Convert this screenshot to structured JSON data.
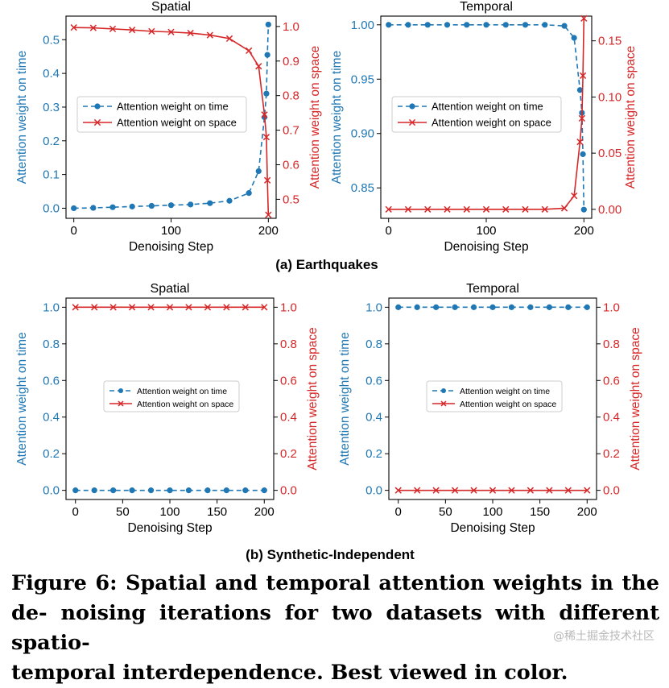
{
  "colors": {
    "time": "#1f77b4",
    "space": "#d62728",
    "axis": "#000000"
  },
  "captions": {
    "panel_a": "(a) Earthquakes",
    "panel_b": "(b) Synthetic-Independent",
    "figure_line1": "Figure 6: Spatial and temporal attention weights in the de-",
    "figure_line2": "noising iterations for two datasets with different spatio-",
    "figure_line3": "temporal interdependence. Best viewed in color."
  },
  "watermark": "@稀土掘金技术社区",
  "chart_data": [
    {
      "type": "line",
      "title": "Spatial",
      "xlabel": "Denoising Step",
      "ylabel_left": "Attention weight on time",
      "ylabel_right": "Attention weight on space",
      "xlim": [
        -8,
        208
      ],
      "ylim_left": [
        -0.03,
        0.57
      ],
      "ylim_right": [
        0.445,
        1.03
      ],
      "xticks": [
        0,
        100,
        200
      ],
      "yticks_left": [
        0.0,
        0.1,
        0.2,
        0.3,
        0.4,
        0.5
      ],
      "yticks_right": [
        0.5,
        0.6,
        0.7,
        0.8,
        0.9,
        1.0
      ],
      "legend": "center-left",
      "legend_size": "large",
      "series": [
        {
          "name": "Attention weight on time",
          "axis": "left",
          "style": "dashed-dot",
          "x": [
            0,
            20,
            40,
            60,
            80,
            100,
            120,
            140,
            160,
            180,
            190,
            196,
            198,
            199,
            200
          ],
          "y": [
            0.0,
            0.001,
            0.003,
            0.005,
            0.007,
            0.009,
            0.011,
            0.015,
            0.022,
            0.045,
            0.11,
            0.27,
            0.34,
            0.455,
            0.545
          ]
        },
        {
          "name": "Attention weight on space",
          "axis": "right",
          "style": "solid-x",
          "x": [
            0,
            20,
            40,
            60,
            80,
            100,
            120,
            140,
            160,
            180,
            190,
            196,
            198,
            199,
            200
          ],
          "y": [
            0.997,
            0.996,
            0.993,
            0.99,
            0.986,
            0.984,
            0.981,
            0.975,
            0.965,
            0.93,
            0.885,
            0.745,
            0.68,
            0.555,
            0.455
          ]
        }
      ]
    },
    {
      "type": "line",
      "title": "Temporal",
      "xlabel": "Denoising Step",
      "ylabel_left": "Attention weight on time",
      "ylabel_right": "Attention weight on space",
      "xlim": [
        -8,
        208
      ],
      "ylim_left": [
        0.822,
        1.008
      ],
      "ylim_right": [
        -0.008,
        0.172
      ],
      "xticks": [
        0,
        100,
        200
      ],
      "yticks_left": [
        0.85,
        0.9,
        0.95,
        1.0
      ],
      "yticks_right": [
        0.0,
        0.05,
        0.1,
        0.15
      ],
      "legend": "center-left",
      "legend_size": "large",
      "series": [
        {
          "name": "Attention weight on time",
          "axis": "left",
          "style": "dashed-dot",
          "x": [
            0,
            20,
            40,
            60,
            80,
            100,
            120,
            140,
            160,
            180,
            190,
            196,
            198,
            199,
            200
          ],
          "y": [
            1.0,
            1.0,
            1.0,
            1.0,
            1.0,
            1.0,
            1.0,
            1.0,
            1.0,
            0.999,
            0.988,
            0.94,
            0.919,
            0.881,
            0.83
          ]
        },
        {
          "name": "Attention weight on space",
          "axis": "right",
          "style": "solid-x",
          "x": [
            0,
            20,
            40,
            60,
            80,
            100,
            120,
            140,
            160,
            180,
            190,
            196,
            198,
            199,
            200
          ],
          "y": [
            0.0,
            0.0,
            0.0,
            0.0,
            0.0,
            0.0,
            0.0,
            0.0,
            0.0,
            0.001,
            0.012,
            0.06,
            0.081,
            0.119,
            0.17
          ]
        }
      ]
    },
    {
      "type": "line",
      "title": "Spatial",
      "xlabel": "Denoising Step",
      "ylabel_left": "Attention weight on time",
      "ylabel_right": "Attention weight on space",
      "xlim": [
        -10,
        210
      ],
      "ylim_left": [
        -0.05,
        1.05
      ],
      "ylim_right": [
        -0.05,
        1.05
      ],
      "xticks": [
        0,
        50,
        100,
        150,
        200
      ],
      "yticks_left": [
        0.0,
        0.2,
        0.4,
        0.6,
        0.8,
        1.0
      ],
      "yticks_right": [
        0.0,
        0.2,
        0.4,
        0.6,
        0.8,
        1.0
      ],
      "legend": "center",
      "legend_size": "small",
      "series": [
        {
          "name": "Attention weight on time",
          "axis": "left",
          "style": "dashed-dot",
          "x": [
            0,
            20,
            40,
            60,
            80,
            100,
            120,
            140,
            160,
            180,
            200
          ],
          "y": [
            0,
            0,
            0,
            0,
            0,
            0,
            0,
            0,
            0,
            0,
            0
          ]
        },
        {
          "name": "Attention weight on space",
          "axis": "right",
          "style": "solid-x",
          "x": [
            0,
            20,
            40,
            60,
            80,
            100,
            120,
            140,
            160,
            180,
            200
          ],
          "y": [
            1,
            1,
            1,
            1,
            1,
            1,
            1,
            1,
            1,
            1,
            1
          ]
        }
      ]
    },
    {
      "type": "line",
      "title": "Temporal",
      "xlabel": "Denoising Step",
      "ylabel_left": "Attention weight on time",
      "ylabel_right": "Attention weight on space",
      "xlim": [
        -10,
        210
      ],
      "ylim_left": [
        -0.05,
        1.05
      ],
      "ylim_right": [
        -0.05,
        1.05
      ],
      "xticks": [
        0,
        50,
        100,
        150,
        200
      ],
      "yticks_left": [
        0.0,
        0.2,
        0.4,
        0.6,
        0.8,
        1.0
      ],
      "yticks_right": [
        0.0,
        0.2,
        0.4,
        0.6,
        0.8,
        1.0
      ],
      "legend": "center",
      "legend_size": "small",
      "series": [
        {
          "name": "Attention weight on time",
          "axis": "left",
          "style": "dashed-dot",
          "x": [
            0,
            20,
            40,
            60,
            80,
            100,
            120,
            140,
            160,
            180,
            200
          ],
          "y": [
            1,
            1,
            1,
            1,
            1,
            1,
            1,
            1,
            1,
            1,
            1
          ]
        },
        {
          "name": "Attention weight on space",
          "axis": "right",
          "style": "solid-x",
          "x": [
            0,
            20,
            40,
            60,
            80,
            100,
            120,
            140,
            160,
            180,
            200
          ],
          "y": [
            0,
            0,
            0,
            0,
            0,
            0,
            0,
            0,
            0,
            0,
            0
          ]
        }
      ]
    }
  ]
}
